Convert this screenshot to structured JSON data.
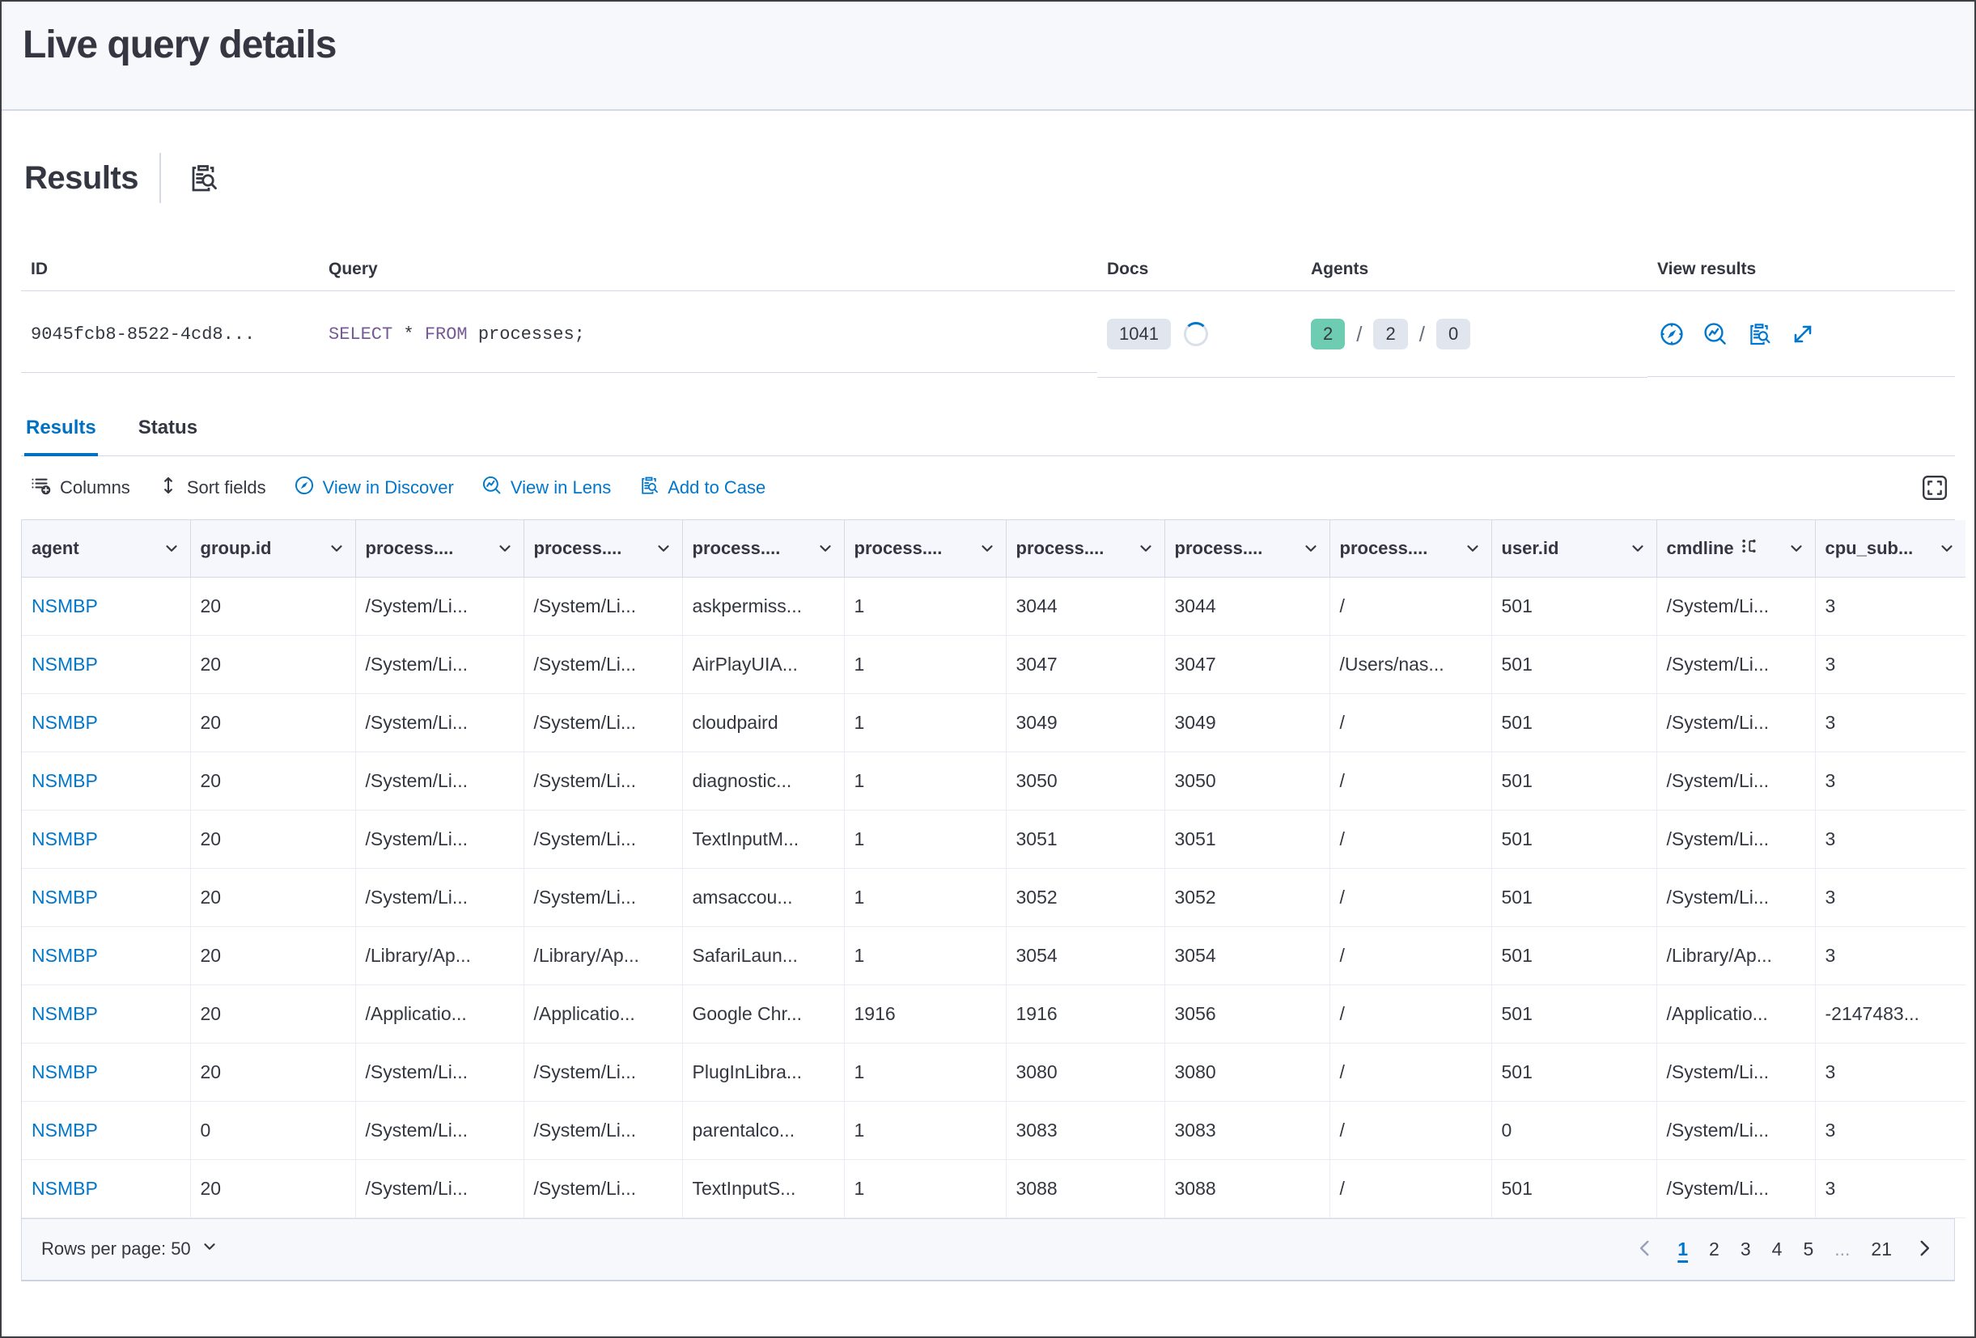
{
  "page": {
    "title": "Live query details"
  },
  "results": {
    "heading": "Results"
  },
  "summary": {
    "headers": {
      "id": "ID",
      "query": "Query",
      "docs": "Docs",
      "agents": "Agents",
      "view": "View results"
    },
    "id_value": "9045fcb8-8522-4cd8...",
    "query_keyword_1": "SELECT",
    "query_mid": " * ",
    "query_keyword_2": "FROM",
    "query_tail": " processes;",
    "docs_count": "1041",
    "agents_success": "2",
    "agents_total": "2",
    "agents_failed": "0",
    "agents_separator": "/"
  },
  "tabs": {
    "results": "Results",
    "status": "Status"
  },
  "toolbar": {
    "columns": "Columns",
    "sort_fields": "Sort fields",
    "view_in_discover": "View in Discover",
    "view_in_lens": "View in Lens",
    "add_to_case": "Add to Case"
  },
  "grid": {
    "headers": [
      {
        "label": "agent"
      },
      {
        "label": "group.id"
      },
      {
        "label": "process...."
      },
      {
        "label": "process...."
      },
      {
        "label": "process...."
      },
      {
        "label": "process...."
      },
      {
        "label": "process...."
      },
      {
        "label": "process...."
      },
      {
        "label": "process...."
      },
      {
        "label": "user.id"
      },
      {
        "label": "cmdline",
        "extra_icon": "token-actions-icon"
      },
      {
        "label": "cpu_sub..."
      }
    ],
    "rows": [
      [
        "NSMBP",
        "20",
        "/System/Li...",
        "/System/Li...",
        "askpermiss...",
        "1",
        "3044",
        "3044",
        "/",
        "501",
        "/System/Li...",
        "3"
      ],
      [
        "NSMBP",
        "20",
        "/System/Li...",
        "/System/Li...",
        "AirPlayUIA...",
        "1",
        "3047",
        "3047",
        "/Users/nas...",
        "501",
        "/System/Li...",
        "3"
      ],
      [
        "NSMBP",
        "20",
        "/System/Li...",
        "/System/Li...",
        "cloudpaird",
        "1",
        "3049",
        "3049",
        "/",
        "501",
        "/System/Li...",
        "3"
      ],
      [
        "NSMBP",
        "20",
        "/System/Li...",
        "/System/Li...",
        "diagnostic...",
        "1",
        "3050",
        "3050",
        "/",
        "501",
        "/System/Li...",
        "3"
      ],
      [
        "NSMBP",
        "20",
        "/System/Li...",
        "/System/Li...",
        "TextInputM...",
        "1",
        "3051",
        "3051",
        "/",
        "501",
        "/System/Li...",
        "3"
      ],
      [
        "NSMBP",
        "20",
        "/System/Li...",
        "/System/Li...",
        "amsaccou...",
        "1",
        "3052",
        "3052",
        "/",
        "501",
        "/System/Li...",
        "3"
      ],
      [
        "NSMBP",
        "20",
        "/Library/Ap...",
        "/Library/Ap...",
        "SafariLaun...",
        "1",
        "3054",
        "3054",
        "/",
        "501",
        "/Library/Ap...",
        "3"
      ],
      [
        "NSMBP",
        "20",
        "/Applicatio...",
        "/Applicatio...",
        "Google Chr...",
        "1916",
        "1916",
        "3056",
        "/",
        "501",
        "/Applicatio...",
        "-2147483..."
      ],
      [
        "NSMBP",
        "20",
        "/System/Li...",
        "/System/Li...",
        "PlugInLibra...",
        "1",
        "3080",
        "3080",
        "/",
        "501",
        "/System/Li...",
        "3"
      ],
      [
        "NSMBP",
        "0",
        "/System/Li...",
        "/System/Li...",
        "parentalco...",
        "1",
        "3083",
        "3083",
        "/",
        "0",
        "/System/Li...",
        "3"
      ],
      [
        "NSMBP",
        "20",
        "/System/Li...",
        "/System/Li...",
        "TextInputS...",
        "1",
        "3088",
        "3088",
        "/",
        "501",
        "/System/Li...",
        "3"
      ]
    ]
  },
  "pagination": {
    "rows_per_page": "Rows per page: 50",
    "pages": [
      "1",
      "2",
      "3",
      "4",
      "5",
      "...",
      "21"
    ],
    "active_page": "1"
  },
  "colors": {
    "accent": "#0077cc",
    "tab_active": "#0071c2",
    "success_badge": "#6dccb1",
    "badge_bg": "#e0e5ee",
    "sql_keyword": "#765b96",
    "text": "#343741"
  }
}
